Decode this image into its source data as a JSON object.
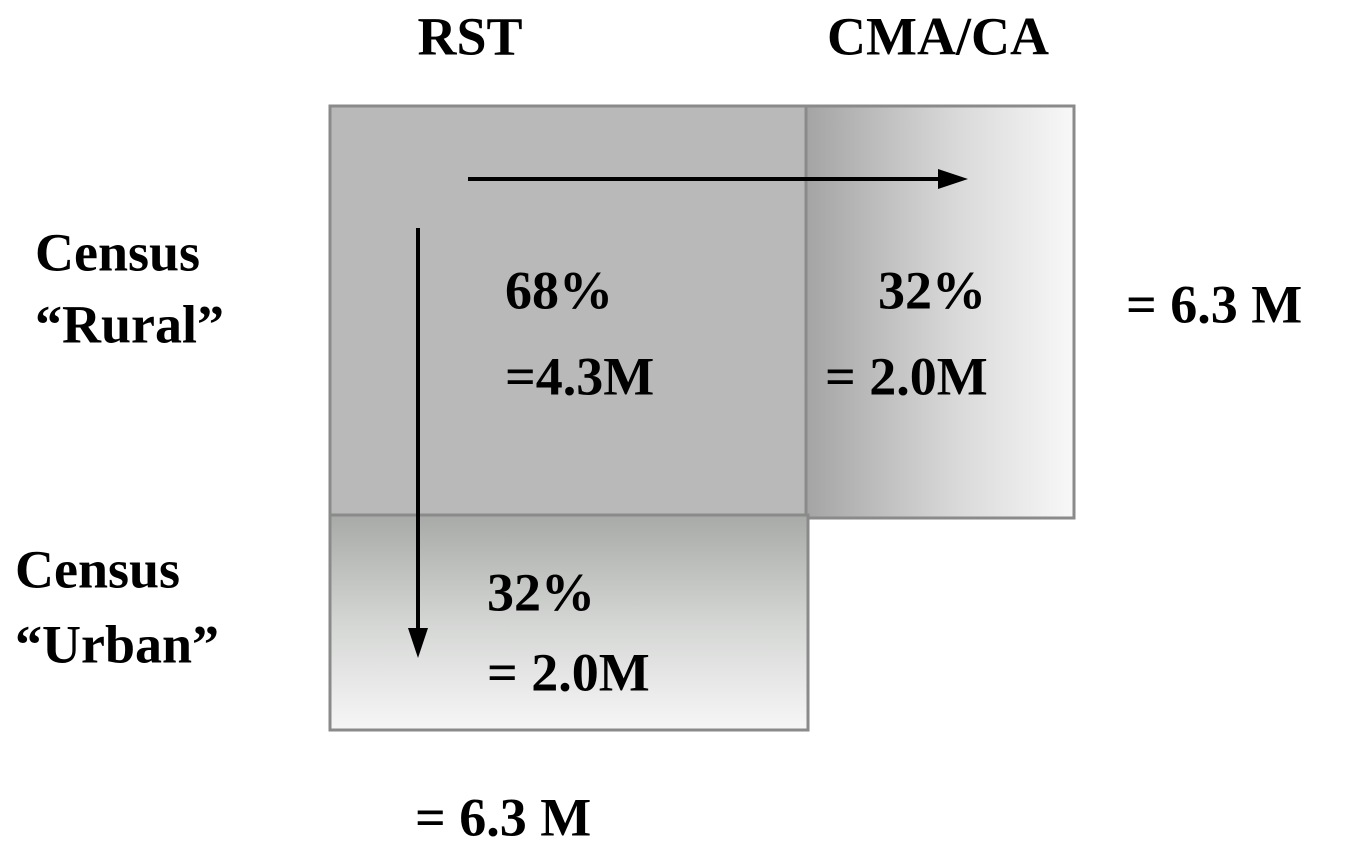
{
  "columns": [
    "RST",
    "CMA/CA"
  ],
  "rows": [
    [
      "Census",
      "“Rural”"
    ],
    [
      "Census",
      "“Urban”"
    ]
  ],
  "cells": {
    "rural_rst": [
      "68%",
      "=4.3M"
    ],
    "rural_cma": [
      "32%",
      "= 2.0M"
    ],
    "urban_rst": [
      "32%",
      "= 2.0M"
    ]
  },
  "totals": {
    "row": "= 6.3 M",
    "column": "= 6.3 M"
  }
}
